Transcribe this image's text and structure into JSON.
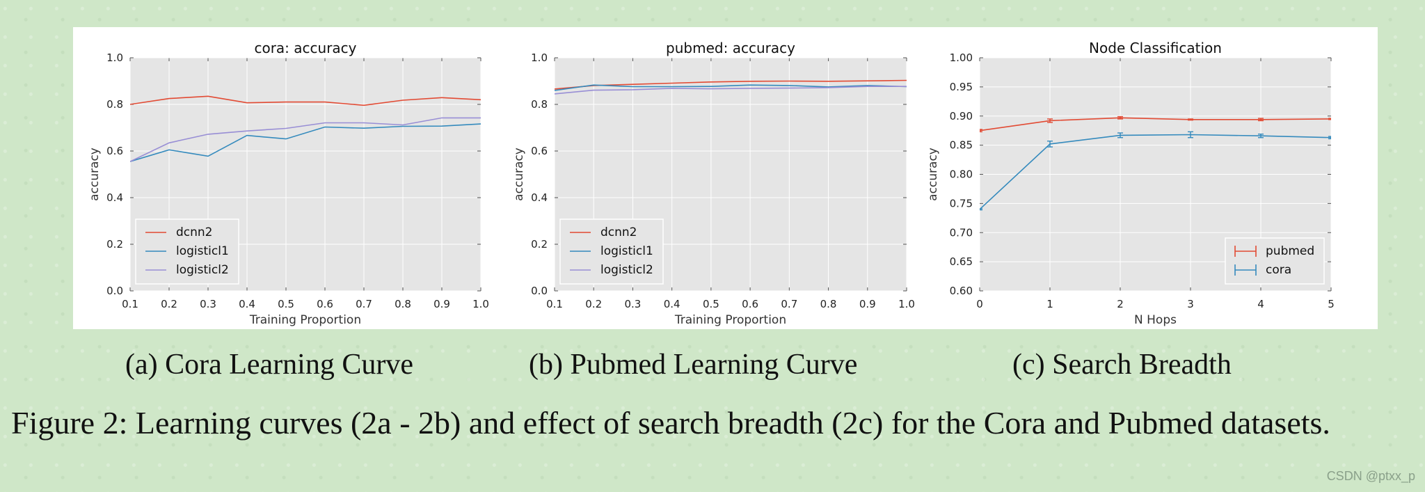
{
  "chart_data": [
    {
      "type": "line",
      "title": "cora: accuracy",
      "xlabel": "Training Proportion",
      "ylabel": "accuracy",
      "xlim": [
        0.1,
        1.0
      ],
      "ylim": [
        0.0,
        1.0
      ],
      "xticks": [
        "0.1",
        "0.2",
        "0.3",
        "0.4",
        "0.5",
        "0.6",
        "0.7",
        "0.8",
        "0.9",
        "1.0"
      ],
      "yticks": [
        "0.0",
        "0.2",
        "0.4",
        "0.6",
        "0.8",
        "1.0"
      ],
      "grid": true,
      "legend": "lower-left",
      "x": [
        0.1,
        0.2,
        0.3,
        0.4,
        0.5,
        0.6,
        0.7,
        0.8,
        0.9,
        1.0
      ],
      "series": [
        {
          "name": "dcnn2",
          "color": "#e24a33",
          "values": [
            0.8,
            0.825,
            0.835,
            0.807,
            0.81,
            0.81,
            0.796,
            0.818,
            0.829,
            0.82
          ]
        },
        {
          "name": "logisticl1",
          "color": "#348abd",
          "values": [
            0.555,
            0.605,
            0.578,
            0.667,
            0.652,
            0.703,
            0.698,
            0.706,
            0.707,
            0.716
          ]
        },
        {
          "name": "logisticl2",
          "color": "#988ed5",
          "values": [
            0.555,
            0.635,
            0.672,
            0.686,
            0.697,
            0.721,
            0.721,
            0.712,
            0.742,
            0.742
          ]
        }
      ]
    },
    {
      "type": "line",
      "title": "pubmed: accuracy",
      "xlabel": "Training Proportion",
      "ylabel": "accuracy",
      "xlim": [
        0.1,
        1.0
      ],
      "ylim": [
        0.0,
        1.0
      ],
      "xticks": [
        "0.1",
        "0.2",
        "0.3",
        "0.4",
        "0.5",
        "0.6",
        "0.7",
        "0.8",
        "0.9",
        "1.0"
      ],
      "yticks": [
        "0.0",
        "0.2",
        "0.4",
        "0.6",
        "0.8",
        "1.0"
      ],
      "grid": true,
      "legend": "lower-left",
      "x": [
        0.1,
        0.2,
        0.3,
        0.4,
        0.5,
        0.6,
        0.7,
        0.8,
        0.9,
        1.0
      ],
      "series": [
        {
          "name": "dcnn2",
          "color": "#e24a33",
          "values": [
            0.866,
            0.881,
            0.886,
            0.891,
            0.896,
            0.899,
            0.9,
            0.899,
            0.901,
            0.903
          ]
        },
        {
          "name": "logisticl1",
          "color": "#348abd",
          "values": [
            0.86,
            0.883,
            0.876,
            0.876,
            0.877,
            0.883,
            0.881,
            0.875,
            0.881,
            0.876
          ]
        },
        {
          "name": "logisticl2",
          "color": "#988ed5",
          "values": [
            0.845,
            0.861,
            0.863,
            0.869,
            0.867,
            0.869,
            0.87,
            0.872,
            0.877,
            0.877
          ]
        }
      ]
    },
    {
      "type": "line",
      "title": "Node Classification",
      "xlabel": "N Hops",
      "ylabel": "accuracy",
      "xlim": [
        0,
        5
      ],
      "ylim": [
        0.6,
        1.0
      ],
      "xticks": [
        "0",
        "1",
        "2",
        "3",
        "4",
        "5"
      ],
      "yticks": [
        "0.60",
        "0.65",
        "0.70",
        "0.75",
        "0.80",
        "0.85",
        "0.90",
        "0.95",
        "1.00"
      ],
      "grid": true,
      "legend": "lower-right",
      "error_bars": true,
      "x": [
        0,
        1,
        2,
        3,
        4,
        5
      ],
      "series": [
        {
          "name": "pubmed",
          "color": "#e24a33",
          "values": [
            0.875,
            0.892,
            0.897,
            0.894,
            0.894,
            0.895
          ],
          "errors": [
            0.002,
            0.003,
            0.002,
            0.001,
            0.002,
            0.001
          ]
        },
        {
          "name": "cora",
          "color": "#348abd",
          "values": [
            0.74,
            0.852,
            0.867,
            0.868,
            0.866,
            0.863
          ],
          "errors": [
            0.001,
            0.005,
            0.004,
            0.005,
            0.003,
            0.002
          ]
        }
      ]
    }
  ],
  "subcaptions": [
    "(a) Cora Learning Curve",
    "(b) Pubmed Learning Curve",
    "(c) Search Breadth"
  ],
  "figure_caption": "Figure 2: Learning curves (2a - 2b) and effect of search breadth (2c) for the Cora and Pubmed datasets.",
  "watermark": "CSDN @ptxx_p"
}
